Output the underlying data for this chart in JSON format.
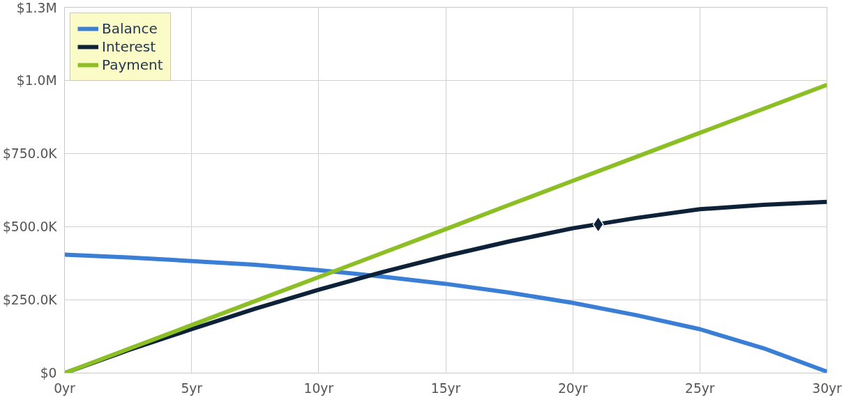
{
  "chart_data": {
    "type": "line",
    "x": [
      0,
      2.5,
      5,
      7.5,
      10,
      12.5,
      15,
      17.5,
      20,
      22.5,
      25,
      27.5,
      30
    ],
    "xlim": [
      0,
      30
    ],
    "xticks": [
      {
        "value": 0,
        "label": "0yr"
      },
      {
        "value": 5,
        "label": "5yr"
      },
      {
        "value": 10,
        "label": "10yr"
      },
      {
        "value": 15,
        "label": "15yr"
      },
      {
        "value": 20,
        "label": "20yr"
      },
      {
        "value": 25,
        "label": "25yr"
      },
      {
        "value": 30,
        "label": "30yr"
      }
    ],
    "ylim": [
      0,
      1250000
    ],
    "yticks": [
      {
        "value": 0,
        "label": "$0"
      },
      {
        "value": 250000,
        "label": "$250.0K"
      },
      {
        "value": 500000,
        "label": "$500.0K"
      },
      {
        "value": 750000,
        "label": "$750.0K"
      },
      {
        "value": 1000000,
        "label": "$1.0M"
      },
      {
        "value": 1250000,
        "label": "$1.3M"
      }
    ],
    "grid": true,
    "legend": "top left",
    "marker": "none",
    "line_style": "solid",
    "series": [
      {
        "name": "Balance",
        "color": "#3a7fd5",
        "values": [
          405000,
          395000,
          383000,
          370000,
          352000,
          330000,
          305000,
          275000,
          240000,
          198000,
          150000,
          85000,
          5000
        ]
      },
      {
        "name": "Interest",
        "color": "#0d2238",
        "values": [
          0,
          78000,
          150000,
          220000,
          285000,
          345000,
          400000,
          450000,
          495000,
          530000,
          560000,
          575000,
          585000
        ]
      },
      {
        "name": "Payment",
        "color": "#8cbf26",
        "values": [
          0,
          82000,
          164000,
          246000,
          328000,
          410000,
          492000,
          575000,
          657000,
          739000,
          821000,
          903000,
          985000
        ]
      },
      {
        "type": "scatter",
        "color": "#0d2238",
        "marker": "diamond",
        "x": [
          21
        ],
        "values": [
          508000
        ]
      }
    ]
  }
}
